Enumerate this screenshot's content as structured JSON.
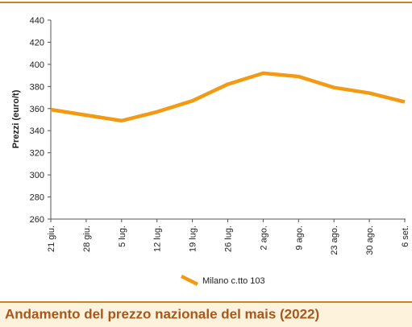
{
  "chart_data": {
    "type": "line",
    "title": "Andamento del prezzo nazionale del mais (2022)",
    "y_label": "Prezzi (euro/t)",
    "categories": [
      "21 giu.",
      "28 giu.",
      "5 lug.",
      "12 lug.",
      "19 lug.",
      "26 lug.",
      "2 ago.",
      "9 ago.",
      "23 ago.",
      "30 ago.",
      "6 set."
    ],
    "series": [
      {
        "name": "Milano c.tto 103",
        "color": "#f39a12",
        "values": [
          359,
          354,
          349,
          357,
          367,
          382,
          392,
          389,
          379,
          374,
          366
        ]
      }
    ],
    "ylim": [
      260,
      440
    ],
    "yticks": [
      260,
      280,
      300,
      320,
      340,
      360,
      380,
      400,
      420,
      440
    ],
    "grid": false
  }
}
